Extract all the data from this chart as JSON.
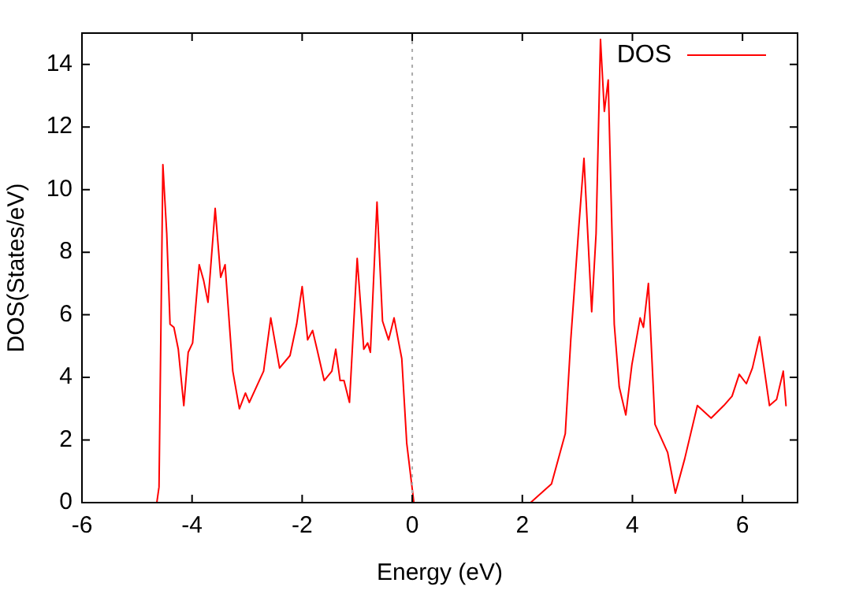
{
  "chart_data": {
    "type": "line",
    "xlabel": "Energy (eV)",
    "ylabel": "DOS(States/eV)",
    "xlim": [
      -6,
      7
    ],
    "xticks": [
      -6,
      -4,
      -2,
      0,
      2,
      4,
      6
    ],
    "ylim": [
      0,
      15
    ],
    "yticks": [
      0,
      2,
      4,
      6,
      8,
      10,
      12,
      14
    ],
    "grid": false,
    "legend": "top right",
    "marker": "none",
    "line_style": "solid",
    "ref_lines": [
      {
        "axis": "x",
        "value": 0,
        "color": "#aaaaaa",
        "line_style": "dotted"
      }
    ],
    "series": [
      {
        "name": "DOS",
        "color": "#ff0000",
        "x": [
          -4.64,
          -4.6,
          -4.53,
          -4.46,
          -4.4,
          -4.33,
          -4.25,
          -4.15,
          -4.07,
          -3.99,
          -3.87,
          -3.79,
          -3.71,
          -3.58,
          -3.48,
          -3.4,
          -3.26,
          -3.14,
          -3.03,
          -2.96,
          -2.7,
          -2.57,
          -2.41,
          -2.22,
          -2.1,
          -2.0,
          -1.9,
          -1.81,
          -1.73,
          -1.6,
          -1.46,
          -1.39,
          -1.31,
          -1.24,
          -1.14,
          -1.0,
          -0.88,
          -0.81,
          -0.76,
          -0.64,
          -0.54,
          -0.43,
          -0.33,
          -0.19,
          -0.1,
          0.03,
          2.15,
          2.53,
          2.78,
          2.88,
          3.03,
          3.12,
          3.26,
          3.34,
          3.42,
          3.49,
          3.56,
          3.67,
          3.76,
          3.88,
          3.99,
          4.14,
          4.2,
          4.29,
          4.41,
          4.64,
          4.78,
          4.95,
          5.18,
          5.43,
          5.66,
          5.81,
          5.94,
          6.07,
          6.18,
          6.31,
          6.49,
          6.62,
          6.74,
          6.79
        ],
        "values": [
          0,
          0.5,
          10.8,
          8.6,
          5.7,
          5.6,
          4.9,
          3.1,
          4.8,
          5.1,
          7.6,
          7.1,
          6.4,
          9.4,
          7.2,
          7.6,
          4.2,
          3.0,
          3.5,
          3.2,
          4.2,
          5.9,
          4.3,
          4.7,
          5.7,
          6.9,
          5.2,
          5.5,
          4.9,
          3.9,
          4.2,
          4.9,
          3.9,
          3.9,
          3.2,
          7.8,
          4.9,
          5.1,
          4.8,
          9.6,
          5.8,
          5.2,
          5.9,
          4.6,
          1.9,
          0,
          0,
          0.6,
          2.2,
          5.2,
          8.9,
          11.0,
          6.1,
          8.6,
          14.8,
          12.5,
          13.5,
          5.7,
          3.7,
          2.8,
          4.4,
          5.9,
          5.6,
          7.0,
          2.5,
          1.6,
          0.3,
          1.4,
          3.1,
          2.7,
          3.1,
          3.4,
          4.1,
          3.8,
          4.3,
          5.3,
          3.1,
          3.3,
          4.2,
          3.1
        ]
      }
    ]
  }
}
